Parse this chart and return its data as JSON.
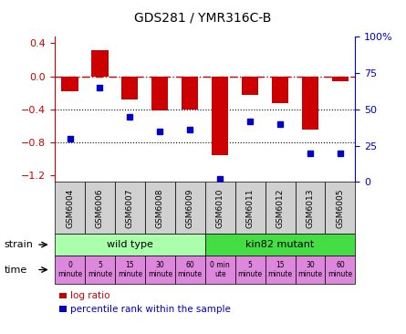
{
  "title": "GDS281 / YMR316C-B",
  "samples": [
    "GSM6004",
    "GSM6006",
    "GSM6007",
    "GSM6008",
    "GSM6009",
    "GSM6010",
    "GSM6011",
    "GSM6012",
    "GSM6013",
    "GSM6005"
  ],
  "log_ratio": [
    -0.18,
    0.32,
    -0.28,
    -0.41,
    -0.4,
    -0.95,
    -0.22,
    -0.32,
    -0.65,
    -0.06
  ],
  "percentile_rank": [
    30,
    65,
    45,
    35,
    36,
    2,
    42,
    40,
    20,
    20
  ],
  "ylim_left": [
    -1.28,
    0.48
  ],
  "ylim_right": [
    0,
    100
  ],
  "yticks_left": [
    0.4,
    0.0,
    -0.4,
    -0.8,
    -1.2
  ],
  "yticks_right": [
    100,
    75,
    50,
    25,
    0
  ],
  "dotted_lines": [
    -0.4,
    -0.8
  ],
  "bar_color": "#cc0000",
  "dot_color": "#0000cc",
  "strains": [
    {
      "label": "wild type",
      "start": 0,
      "end": 5,
      "color": "#aaffaa"
    },
    {
      "label": "kin82 mutant",
      "start": 5,
      "end": 10,
      "color": "#44dd44"
    }
  ],
  "time_labels": [
    "0\nminute",
    "5\nminute",
    "15\nminute",
    "30\nminute",
    "60\nminute",
    "0 min\nute",
    "5\nminute",
    "15\nminute",
    "30\nminute",
    "60\nminute"
  ],
  "time_colors": [
    "#dd88dd",
    "#dd88dd",
    "#dd88dd",
    "#dd88dd",
    "#dd88dd",
    "#dd88dd",
    "#dd88dd",
    "#dd88dd",
    "#dd88dd",
    "#dd88dd"
  ],
  "sample_bg": "#d0d0d0",
  "legend_items": [
    {
      "label": "log ratio",
      "color": "#cc0000"
    },
    {
      "label": "percentile rank within the sample",
      "color": "#0000cc"
    }
  ]
}
